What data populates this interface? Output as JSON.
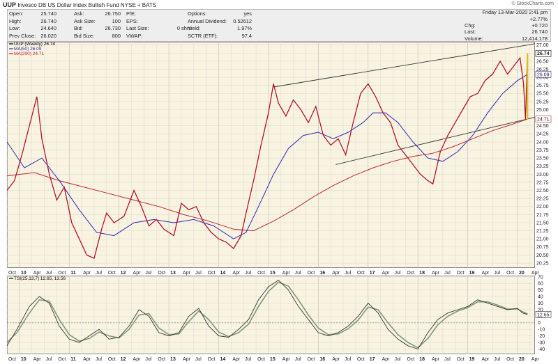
{
  "header": {
    "symbol": "UUP",
    "name": "Invesco DB US Dollar Index Bullish Fund NYSE + BATS",
    "credit": "© StockCharts.com"
  },
  "quote": {
    "col1": [
      [
        "Open:",
        "25.740"
      ],
      [
        "High:",
        "26.740"
      ],
      [
        "Low:",
        "24.640"
      ],
      [
        "Prev Close:",
        "26.020"
      ]
    ],
    "col2": [
      [
        "Ask:",
        "26.750"
      ],
      [
        "Ask Size:",
        "100"
      ],
      [
        "Bid:",
        "26.730"
      ],
      [
        "Bid Size:",
        "800"
      ]
    ],
    "col3": [
      [
        "P/E:",
        ""
      ],
      [
        "EPS:",
        ""
      ],
      [
        "Last Size:",
        "0 shrs"
      ],
      [
        "VWAP:",
        ""
      ]
    ],
    "col4": [
      [
        "Options:",
        "yes"
      ],
      [
        "Annual Dividend:",
        "0.52612"
      ],
      [
        "Yield:",
        "1.97%"
      ],
      [
        "SCTR (ETF):",
        "97.4"
      ]
    ],
    "datetime": "Friday 13-Mar-2020  2:41 pm",
    "col5": [
      [
        "",
        "+2.77%"
      ],
      [
        "Chg:",
        "+0.720"
      ],
      [
        "Last:",
        "26.740"
      ],
      [
        "Volume:",
        "12,414,178"
      ]
    ]
  },
  "chart_data": [
    {
      "type": "line",
      "title": "",
      "legend": [
        {
          "label": "UUP (Weekly) 26.74",
          "color": "#000000"
        },
        {
          "label": "MA(50) 26.09",
          "color": "#2b2bb0"
        },
        {
          "label": "MA(200) 24.71",
          "color": "#c0242b"
        }
      ],
      "ylim": [
        20.1,
        27.1
      ],
      "yticks": [
        "20.25",
        "20.50",
        "20.75",
        "21.00",
        "21.25",
        "21.50",
        "21.75",
        "22.00",
        "22.25",
        "22.50",
        "22.75",
        "23.00",
        "23.25",
        "23.50",
        "23.75",
        "24.00",
        "24.25",
        "24.50",
        "24.75",
        "25.00",
        "25.25",
        "25.50",
        "25.75",
        "26.00",
        "26.25",
        "26.50",
        "26.75",
        "27.00"
      ],
      "xlim": [
        2009.75,
        2020.35
      ],
      "xticks": [
        "Oct",
        "10",
        "Apr",
        "Jul",
        "Oct",
        "11",
        "Apr",
        "Jul",
        "Oct",
        "12",
        "Apr",
        "Jul",
        "Oct",
        "13",
        "Apr",
        "Jul",
        "Oct",
        "14",
        "Apr",
        "Jul",
        "Oct",
        "15",
        "Apr",
        "Jul",
        "Oct",
        "16",
        "Apr",
        "Jul",
        "Oct",
        "17",
        "Apr",
        "Jul",
        "Oct",
        "18",
        "Apr",
        "Jul",
        "Oct",
        "19",
        "Apr",
        "Jul",
        "Oct",
        "20",
        "Apr"
      ],
      "series": [
        {
          "name": "UUP (Weekly)",
          "x": [
            2009.75,
            2009.9,
            2010.05,
            2010.2,
            2010.35,
            2010.45,
            2010.6,
            2010.75,
            2010.9,
            2011.05,
            2011.2,
            2011.35,
            2011.5,
            2011.65,
            2011.75,
            2011.9,
            2012.1,
            2012.3,
            2012.45,
            2012.6,
            2012.75,
            2012.9,
            2013.1,
            2013.25,
            2013.4,
            2013.55,
            2013.7,
            2013.85,
            2014.0,
            2014.15,
            2014.3,
            2014.45,
            2014.55,
            2014.7,
            2014.85,
            2015.0,
            2015.1,
            2015.2,
            2015.35,
            2015.5,
            2015.65,
            2015.8,
            2015.95,
            2016.1,
            2016.25,
            2016.4,
            2016.55,
            2016.7,
            2016.85,
            2017.0,
            2017.15,
            2017.3,
            2017.45,
            2017.6,
            2017.75,
            2017.9,
            2018.05,
            2018.2,
            2018.3,
            2018.45,
            2018.6,
            2018.75,
            2018.9,
            2019.05,
            2019.2,
            2019.35,
            2019.5,
            2019.65,
            2019.8,
            2019.95,
            2020.05,
            2020.12,
            2020.16,
            2020.2
          ],
          "values": [
            22.5,
            22.8,
            23.6,
            24.5,
            25.4,
            24.1,
            23.0,
            22.2,
            22.6,
            21.5,
            21.0,
            20.5,
            20.4,
            21.3,
            21.8,
            21.5,
            21.7,
            22.5,
            22.0,
            21.4,
            21.6,
            21.3,
            21.1,
            22.1,
            21.9,
            22.0,
            21.5,
            21.2,
            21.0,
            20.9,
            20.7,
            21.1,
            21.8,
            22.8,
            23.9,
            24.9,
            25.8,
            25.2,
            24.8,
            25.3,
            25.0,
            24.6,
            25.1,
            24.2,
            23.9,
            24.1,
            23.6,
            24.6,
            25.5,
            25.8,
            25.4,
            24.9,
            24.6,
            23.9,
            23.6,
            23.3,
            23.0,
            22.8,
            22.7,
            23.7,
            24.2,
            24.6,
            25.0,
            25.4,
            25.5,
            25.9,
            26.1,
            26.5,
            26.1,
            26.4,
            26.6,
            25.8,
            24.7,
            26.74
          ]
        },
        {
          "name": "MA(50)",
          "x": [
            2009.75,
            2010.1,
            2010.45,
            2010.8,
            2011.2,
            2011.55,
            2011.9,
            2012.3,
            2012.7,
            2013.1,
            2013.5,
            2013.9,
            2014.3,
            2014.55,
            2014.8,
            2015.1,
            2015.4,
            2015.7,
            2016.0,
            2016.3,
            2016.6,
            2016.9,
            2017.1,
            2017.35,
            2017.6,
            2017.9,
            2018.2,
            2018.5,
            2018.8,
            2019.1,
            2019.4,
            2019.7,
            2020.0,
            2020.2
          ],
          "values": [
            24.0,
            23.2,
            23.5,
            22.8,
            21.9,
            21.2,
            21.1,
            21.5,
            21.6,
            21.5,
            21.6,
            21.4,
            21.0,
            21.2,
            22.0,
            23.0,
            23.8,
            24.2,
            24.3,
            24.1,
            24.3,
            24.6,
            24.9,
            24.9,
            24.6,
            24.0,
            23.5,
            23.4,
            23.7,
            24.2,
            24.9,
            25.5,
            25.9,
            26.09
          ]
        },
        {
          "name": "MA(200)",
          "x": [
            2009.75,
            2010.3,
            2010.8,
            2011.3,
            2011.8,
            2012.3,
            2012.8,
            2013.3,
            2013.8,
            2014.3,
            2014.7,
            2015.1,
            2015.5,
            2015.9,
            2016.3,
            2016.7,
            2017.1,
            2017.5,
            2017.9,
            2018.3,
            2018.7,
            2019.1,
            2019.5,
            2019.9,
            2020.2
          ],
          "values": [
            22.95,
            23.05,
            22.8,
            22.6,
            22.4,
            22.2,
            22.0,
            21.75,
            21.55,
            21.3,
            21.25,
            21.55,
            21.9,
            22.3,
            22.65,
            22.95,
            23.2,
            23.4,
            23.55,
            23.65,
            23.85,
            24.1,
            24.35,
            24.55,
            24.71
          ]
        }
      ],
      "trend_channel": [
        {
          "x": [
            2015.1,
            2020.2
          ],
          "values": [
            25.7,
            27.0
          ]
        },
        {
          "x": [
            2016.35,
            2020.2
          ],
          "values": [
            23.3,
            24.71
          ]
        }
      ],
      "last_value_labels": [
        "26.74",
        "26.09",
        "24.71"
      ],
      "colors": {
        "price": "#b3132b",
        "ma50": "#2b2bb0",
        "ma200": "#c0242b",
        "panel_bg": "#f9f3e1",
        "highlight": "#d6c418"
      }
    },
    {
      "type": "line",
      "title": "",
      "legend": [
        {
          "label": "TSI(25,13,7) 12.65, 13.56",
          "color": "#000000"
        }
      ],
      "ylim": [
        -48,
        72
      ],
      "yticks": [
        "-40",
        "-30",
        "-20",
        "-10",
        "0",
        "10",
        "20",
        "30",
        "40",
        "50",
        "60",
        "70"
      ],
      "zero_line": 0,
      "series": [
        {
          "name": "TSI",
          "x": [
            2009.75,
            2009.95,
            2010.2,
            2010.4,
            2010.6,
            2010.8,
            2011.0,
            2011.2,
            2011.4,
            2011.6,
            2011.8,
            2012.0,
            2012.2,
            2012.4,
            2012.6,
            2012.8,
            2013.0,
            2013.2,
            2013.4,
            2013.6,
            2013.8,
            2014.0,
            2014.2,
            2014.4,
            2014.6,
            2014.8,
            2015.0,
            2015.2,
            2015.4,
            2015.6,
            2015.8,
            2016.0,
            2016.2,
            2016.4,
            2016.6,
            2016.8,
            2017.0,
            2017.2,
            2017.4,
            2017.6,
            2017.8,
            2018.0,
            2018.2,
            2018.4,
            2018.6,
            2018.8,
            2019.0,
            2019.2,
            2019.4,
            2019.6,
            2019.8,
            2020.0,
            2020.1,
            2020.2
          ],
          "values": [
            -35,
            -10,
            25,
            40,
            30,
            -5,
            -25,
            -30,
            -20,
            -10,
            -25,
            -22,
            -5,
            20,
            10,
            -15,
            -20,
            -15,
            10,
            22,
            -5,
            -20,
            -22,
            -10,
            5,
            35,
            55,
            65,
            50,
            25,
            5,
            -15,
            -20,
            -15,
            -5,
            10,
            30,
            15,
            -10,
            -25,
            -35,
            -40,
            -15,
            5,
            15,
            20,
            25,
            35,
            30,
            25,
            20,
            22,
            15,
            12.65
          ]
        },
        {
          "name": "Signal",
          "x": [
            2009.75,
            2009.95,
            2010.2,
            2010.4,
            2010.6,
            2010.8,
            2011.0,
            2011.2,
            2011.4,
            2011.6,
            2011.8,
            2012.0,
            2012.2,
            2012.4,
            2012.6,
            2012.8,
            2013.0,
            2013.2,
            2013.4,
            2013.6,
            2013.8,
            2014.0,
            2014.2,
            2014.4,
            2014.6,
            2014.8,
            2015.0,
            2015.2,
            2015.4,
            2015.6,
            2015.8,
            2016.0,
            2016.2,
            2016.4,
            2016.6,
            2016.8,
            2017.0,
            2017.2,
            2017.4,
            2017.6,
            2017.8,
            2018.0,
            2018.2,
            2018.4,
            2018.6,
            2018.8,
            2019.0,
            2019.2,
            2019.4,
            2019.6,
            2019.8,
            2020.0,
            2020.1,
            2020.2
          ],
          "values": [
            -30,
            -15,
            15,
            35,
            33,
            5,
            -18,
            -28,
            -24,
            -14,
            -20,
            -23,
            -10,
            12,
            14,
            -8,
            -18,
            -17,
            2,
            18,
            5,
            -14,
            -21,
            -15,
            -2,
            25,
            48,
            62,
            56,
            35,
            12,
            -8,
            -18,
            -17,
            -9,
            4,
            24,
            20,
            0,
            -18,
            -30,
            -38,
            -24,
            -3,
            10,
            18,
            23,
            32,
            32,
            27,
            21,
            21,
            17,
            13.56
          ]
        }
      ],
      "last_value_labels": [
        "12.65"
      ]
    }
  ]
}
